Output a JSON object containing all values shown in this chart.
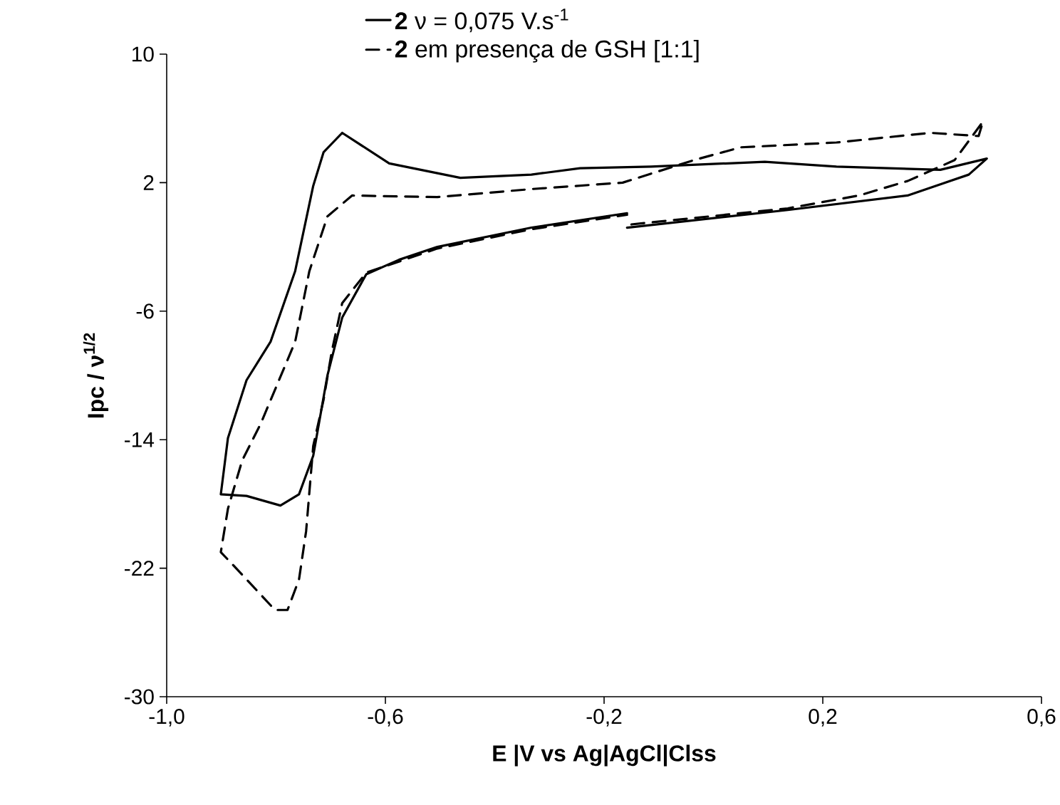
{
  "chart_data": {
    "type": "line",
    "xlabel": "E |V vs Ag|AgCl|Clss",
    "ylabel": "Ipc / ν$^{1/2}$",
    "xlim": [
      -1.0,
      0.6
    ],
    "xticks": [
      {
        "value": -1.0,
        "label": "-1,0"
      },
      {
        "value": -0.6,
        "label": "-0,6"
      },
      {
        "value": -0.2,
        "label": "-0,2"
      },
      {
        "value": 0.2,
        "label": "0,2"
      },
      {
        "value": 0.6,
        "label": "0,6"
      }
    ],
    "ylim": [
      -30,
      10
    ],
    "yticks": [
      -30,
      -22,
      -14,
      -6,
      2,
      10
    ],
    "legend": "top",
    "series": [
      {
        "name": "**2** ν = 0,075 V.s$^{-1}$",
        "color": "#000000",
        "line_style": "solid",
        "x": [
          -0.158,
          0.136,
          0.355,
          0.467,
          0.5,
          0.415,
          0.225,
          0.094,
          -0.114,
          -0.244,
          -0.333,
          -0.463,
          -0.593,
          -0.679,
          -0.713,
          -0.732,
          -0.765,
          -0.81,
          -0.854,
          -0.888,
          -0.901,
          -0.854,
          -0.792,
          -0.758,
          -0.732,
          -0.706,
          -0.679,
          -0.635,
          -0.575,
          -0.505,
          -0.333,
          -0.158
        ],
        "values": [
          -0.8,
          0.3,
          1.2,
          2.5,
          3.5,
          2.8,
          3.0,
          3.3,
          3.0,
          2.9,
          2.5,
          2.3,
          3.2,
          5.1,
          3.9,
          1.8,
          -3.5,
          -7.9,
          -10.3,
          -13.9,
          -17.4,
          -17.5,
          -18.1,
          -17.4,
          -15.0,
          -10.0,
          -6.4,
          -3.7,
          -2.8,
          -2.0,
          -0.8,
          0.1
        ]
      },
      {
        "name": "**2** em presença de GSH [1:1]",
        "color": "#000000",
        "line_style": "dashed",
        "x": [
          -0.15,
          0.136,
          0.266,
          0.355,
          0.441,
          0.493,
          0.485,
          0.397,
          0.225,
          0.05,
          -0.036,
          -0.166,
          -0.333,
          -0.505,
          -0.661,
          -0.706,
          -0.739,
          -0.765,
          -0.828,
          -0.862,
          -0.888,
          -0.901,
          -0.862,
          -0.802,
          -0.779,
          -0.758,
          -0.745,
          -0.732,
          -0.713,
          -0.698,
          -0.679,
          -0.635,
          -0.505,
          -0.333,
          -0.158
        ],
        "values": [
          -0.6,
          0.4,
          1.2,
          2.1,
          3.4,
          5.8,
          4.9,
          5.1,
          4.5,
          4.2,
          3.4,
          2.0,
          1.6,
          1.1,
          1.2,
          -0.1,
          -3.5,
          -7.9,
          -13.0,
          -15.3,
          -18.3,
          -21.0,
          -22.4,
          -24.6,
          -24.6,
          -22.7,
          -19.7,
          -14.4,
          -11.5,
          -8.5,
          -5.5,
          -3.6,
          -2.1,
          -0.9,
          0.0
        ]
      }
    ]
  }
}
